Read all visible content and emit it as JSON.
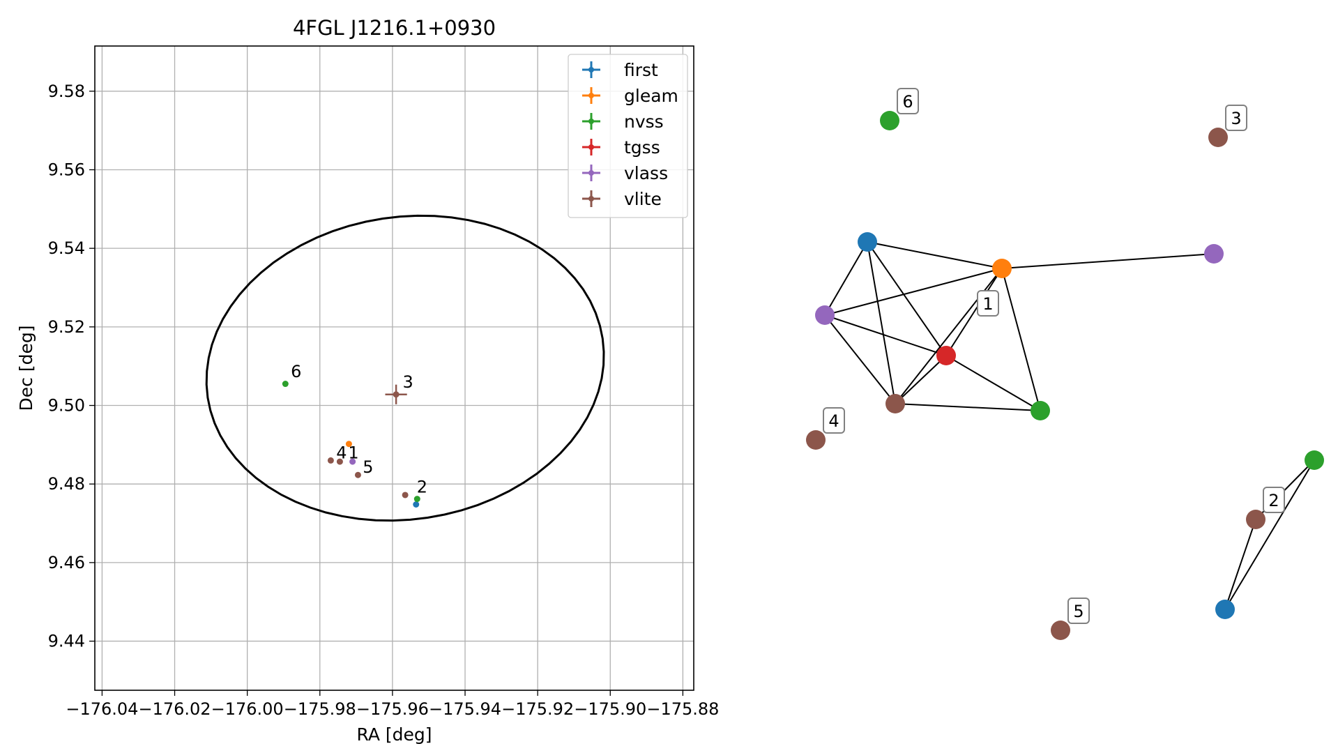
{
  "chart_data": [
    {
      "type": "scatter",
      "title": "4FGL J1216.1+0930",
      "xlabel": "RA [deg]",
      "ylabel": "Dec [deg]",
      "xlim": [
        -176.042,
        -175.877
      ],
      "ylim": [
        9.4275,
        9.5915
      ],
      "grid": true,
      "x_ticks": [
        -176.04,
        -176.02,
        -176.0,
        -175.98,
        -175.96,
        -175.94,
        -175.92,
        -175.9,
        -175.88
      ],
      "x_tick_labels": [
        "−176.04",
        "−176.02",
        "−176.00",
        "−175.98",
        "−175.96",
        "−175.94",
        "−175.92",
        "−175.90",
        "−175.88"
      ],
      "y_ticks": [
        9.44,
        9.46,
        9.48,
        9.5,
        9.52,
        9.54,
        9.56,
        9.58
      ],
      "y_tick_labels": [
        "9.44",
        "9.46",
        "9.48",
        "9.50",
        "9.52",
        "9.54",
        "9.56",
        "9.58"
      ],
      "legend_position": "top-right",
      "series": [
        {
          "name": "first",
          "color": "#1f77b4",
          "points": [
            {
              "x": -175.9535,
              "y": 9.4748
            }
          ]
        },
        {
          "name": "gleam",
          "color": "#ff7f0e",
          "points": [
            {
              "x": -175.972,
              "y": 9.4902
            }
          ]
        },
        {
          "name": "nvss",
          "color": "#2ca02c",
          "points": [
            {
              "x": -175.9895,
              "y": 9.5055
            },
            {
              "x": -175.9532,
              "y": 9.4762
            }
          ]
        },
        {
          "name": "tgss",
          "color": "#d62728",
          "points": []
        },
        {
          "name": "vlass",
          "color": "#9467bd",
          "points": [
            {
              "x": -175.971,
              "y": 9.4857
            }
          ]
        },
        {
          "name": "vlite",
          "color": "#8c564b",
          "points": [
            {
              "x": -175.977,
              "y": 9.486
            },
            {
              "x": -175.9745,
              "y": 9.4857
            },
            {
              "x": -175.9695,
              "y": 9.4823
            },
            {
              "x": -175.9565,
              "y": 9.4772
            },
            {
              "x": -175.959,
              "y": 9.5028,
              "xerr": 0.003,
              "yerr": 0.0025
            }
          ]
        }
      ],
      "annotations": [
        {
          "text": "1",
          "x": -175.9722,
          "y": 9.4865
        },
        {
          "text": "2",
          "x": -175.9533,
          "y": 9.4778
        },
        {
          "text": "3",
          "x": -175.9572,
          "y": 9.5045
        },
        {
          "text": "4",
          "x": -175.9755,
          "y": 9.4865
        },
        {
          "text": "5",
          "x": -175.9682,
          "y": 9.4829
        },
        {
          "text": "6",
          "x": -175.988,
          "y": 9.5072
        }
      ],
      "ellipse": {
        "center_x": -175.9565,
        "center_y": 9.5095,
        "rx": 0.055,
        "ry": 0.0385,
        "angle_deg": 8.5,
        "color": "#000000"
      }
    },
    {
      "type": "network",
      "nodes": [
        {
          "id": "a",
          "color": "#1f77b4"
        },
        {
          "id": "b",
          "color": "#ff7f0e"
        },
        {
          "id": "c",
          "color": "#9467bd"
        },
        {
          "id": "d",
          "color": "#d62728"
        },
        {
          "id": "e",
          "color": "#8c564b"
        },
        {
          "id": "f",
          "color": "#2ca02c"
        },
        {
          "id": "g",
          "color": "#9467bd"
        },
        {
          "id": "h",
          "color": "#2ca02c",
          "label": "6"
        },
        {
          "id": "i",
          "color": "#8c564b",
          "label": "3"
        },
        {
          "id": "j",
          "color": "#8c564b",
          "label": "4"
        },
        {
          "id": "k",
          "color": "#2ca02c"
        },
        {
          "id": "l",
          "color": "#8c564b",
          "label": "2"
        },
        {
          "id": "m",
          "color": "#1f77b4"
        },
        {
          "id": "n",
          "color": "#8c564b",
          "label": "5"
        }
      ],
      "edges": [
        [
          "a",
          "b"
        ],
        [
          "a",
          "c"
        ],
        [
          "a",
          "d"
        ],
        [
          "a",
          "e"
        ],
        [
          "b",
          "c"
        ],
        [
          "b",
          "d"
        ],
        [
          "b",
          "e"
        ],
        [
          "b",
          "f"
        ],
        [
          "b",
          "g"
        ],
        [
          "c",
          "d"
        ],
        [
          "c",
          "e"
        ],
        [
          "d",
          "e"
        ],
        [
          "d",
          "f"
        ],
        [
          "e",
          "f"
        ],
        [
          "k",
          "l"
        ],
        [
          "k",
          "m"
        ],
        [
          "l",
          "m"
        ]
      ],
      "edge_labels": [
        {
          "text": "1",
          "between": [
            "b",
            "d"
          ]
        }
      ]
    }
  ]
}
